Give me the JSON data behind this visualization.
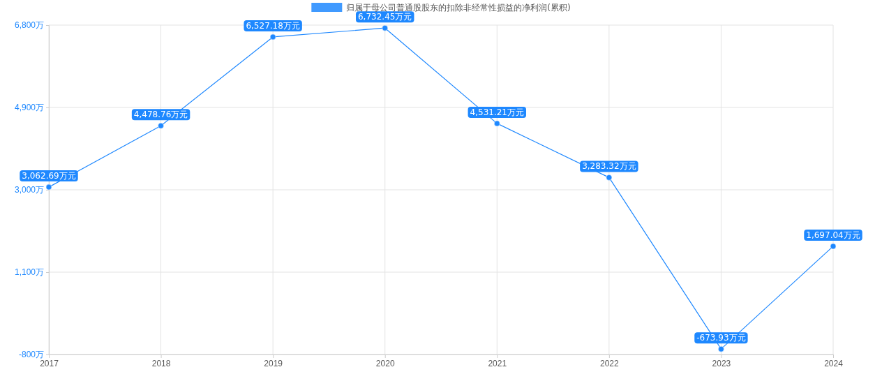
{
  "chart_data": {
    "type": "line",
    "categories": [
      "2017",
      "2018",
      "2019",
      "2020",
      "2021",
      "2022",
      "2023",
      "2024"
    ],
    "series": [
      {
        "name": "归属于母公司普通股股东的扣除非经常性损益的净利润(累积)",
        "color": "#1e88ff",
        "values": [
          3062.69,
          4478.76,
          6527.18,
          6732.45,
          4531.21,
          3283.32,
          -673.93,
          1697.04
        ],
        "value_labels": [
          "3,062.69万元",
          "4,478.76万元",
          "6,527.18万元",
          "6,732.45万元",
          "4,531.21万元",
          "3,283.32万元",
          "-673.93万元",
          "1,697.04万元"
        ]
      }
    ],
    "ylim": [
      -800,
      6800
    ],
    "yticks": [
      {
        "value": -800,
        "label": "-800万"
      },
      {
        "value": 1100,
        "label": "1,100万"
      },
      {
        "value": 3000,
        "label": "3,000万"
      },
      {
        "value": 4900,
        "label": "4,900万"
      },
      {
        "value": 6800,
        "label": "6,800万"
      }
    ],
    "grid": true,
    "legend": "top",
    "marker": "circle",
    "line_style": "solid"
  }
}
